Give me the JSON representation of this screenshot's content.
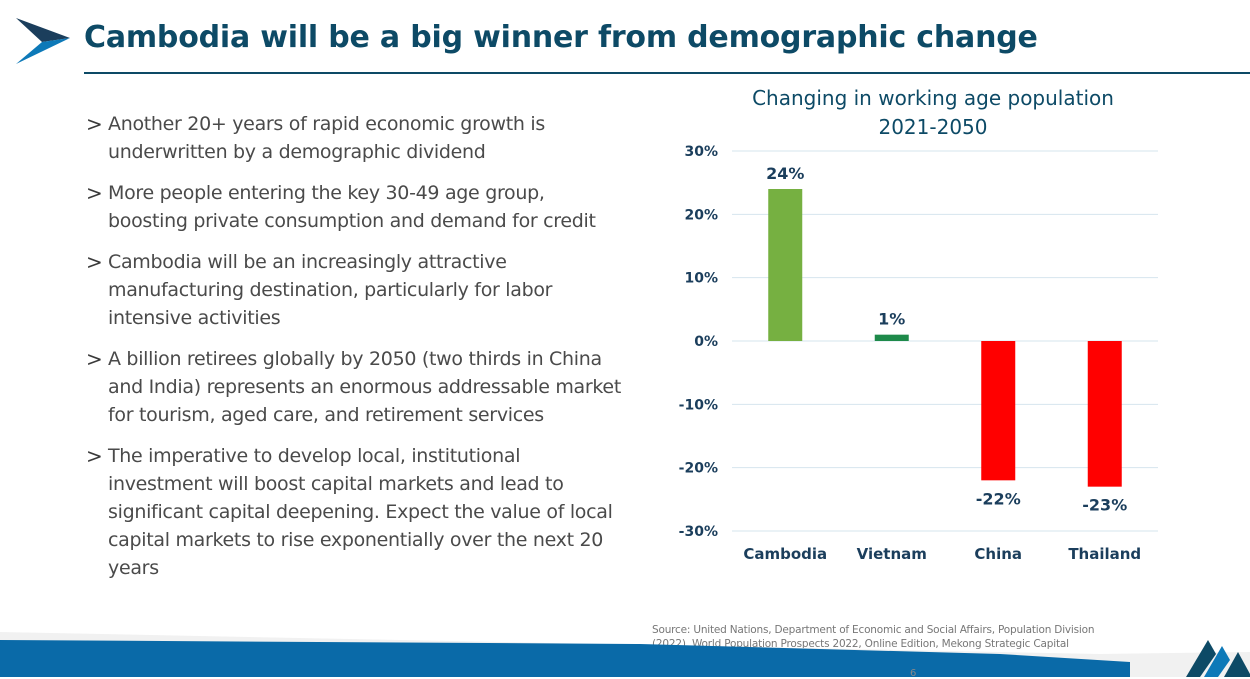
{
  "header": {
    "title": "Cambodia will be a big winner from demographic change"
  },
  "bullets": [
    {
      "arrow": ">",
      "text": "Another 20+ years of rapid economic growth is underwritten by a demographic dividend"
    },
    {
      "arrow": ">",
      "text": "More people entering the key 30-49 age group, boosting private consumption and demand for credit"
    },
    {
      "arrow": ">",
      "text": "Cambodia will be an increasingly attractive manufacturing destination, particularly for labor intensive activities"
    },
    {
      "arrow": ">",
      "text": "A billion retirees globally by 2050 (two thirds in China and India) represents an enormous addressable market for tourism, aged care, and retirement services"
    },
    {
      "arrow": ">",
      "text": "The imperative to develop local, institutional investment will boost capital markets and lead to significant capital deepening. Expect the value of local capital markets to rise exponentially over the next 20 years"
    }
  ],
  "chart_data": {
    "type": "bar",
    "title": "Changing in working age population 2021-2050",
    "title_lines": [
      "Changing in working age population",
      "2021-2050"
    ],
    "categories": [
      "Cambodia",
      "Vietnam",
      "China",
      "Thailand"
    ],
    "values": [
      24,
      1,
      -22,
      -23
    ],
    "data_labels": [
      "24%",
      "1%",
      "-22%",
      "-23%"
    ],
    "bar_colors": [
      "#76b041",
      "#1e8a4a",
      "#ff0000",
      "#ff0000"
    ],
    "ylim": [
      -30,
      30
    ],
    "yticks": [
      30,
      20,
      10,
      0,
      -10,
      -20,
      -30
    ],
    "ytick_labels": [
      "30%",
      "20%",
      "10%",
      "0%",
      "-10%",
      "-20%",
      "-30%"
    ],
    "xlabel": "",
    "ylabel": "",
    "grid": true,
    "legend": "none"
  },
  "source": {
    "text": "Source: United Nations, Department of Economic and Social Affairs, Population Division (2022). World Population Prospects 2022, Online Edition, Mekong Strategic Capital"
  },
  "footer": {
    "page_number": "6"
  },
  "colors": {
    "title": "#0d4a66",
    "footer_blue": "#0a6aa8",
    "chevron_blue": "#0d6fa8"
  }
}
